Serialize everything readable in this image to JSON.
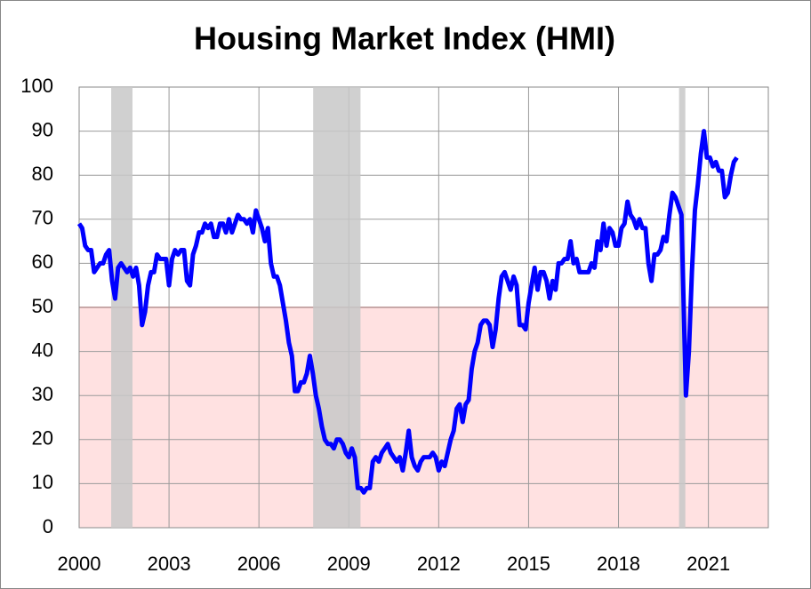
{
  "chart_data": {
    "type": "line",
    "title": "Housing Market Index (HMI)",
    "x": [
      2000.0,
      2000.1,
      2000.2,
      2000.3,
      2000.4,
      2000.5,
      2000.6,
      2000.7,
      2000.8,
      2000.9,
      2001.0,
      2001.1,
      2001.2,
      2001.3,
      2001.4,
      2001.5,
      2001.6,
      2001.7,
      2001.8,
      2001.9,
      2002.0,
      2002.1,
      2002.2,
      2002.3,
      2002.4,
      2002.5,
      2002.6,
      2002.7,
      2002.8,
      2002.9,
      2003.0,
      2003.1,
      2003.2,
      2003.3,
      2003.4,
      2003.5,
      2003.6,
      2003.7,
      2003.8,
      2003.9,
      2004.0,
      2004.1,
      2004.2,
      2004.3,
      2004.4,
      2004.5,
      2004.6,
      2004.7,
      2004.8,
      2004.9,
      2005.0,
      2005.1,
      2005.2,
      2005.3,
      2005.4,
      2005.5,
      2005.6,
      2005.7,
      2005.8,
      2005.9,
      2006.0,
      2006.1,
      2006.2,
      2006.3,
      2006.4,
      2006.5,
      2006.6,
      2006.7,
      2006.8,
      2006.9,
      2007.0,
      2007.1,
      2007.2,
      2007.3,
      2007.4,
      2007.5,
      2007.6,
      2007.7,
      2007.8,
      2007.9,
      2008.0,
      2008.1,
      2008.2,
      2008.3,
      2008.4,
      2008.5,
      2008.6,
      2008.7,
      2008.8,
      2008.9,
      2009.0,
      2009.1,
      2009.2,
      2009.3,
      2009.4,
      2009.5,
      2009.6,
      2009.7,
      2009.8,
      2009.9,
      2010.0,
      2010.1,
      2010.2,
      2010.3,
      2010.4,
      2010.5,
      2010.6,
      2010.7,
      2010.8,
      2010.9,
      2011.0,
      2011.1,
      2011.2,
      2011.3,
      2011.4,
      2011.5,
      2011.6,
      2011.7,
      2011.8,
      2011.9,
      2012.0,
      2012.1,
      2012.2,
      2012.3,
      2012.4,
      2012.5,
      2012.6,
      2012.7,
      2012.8,
      2012.9,
      2013.0,
      2013.1,
      2013.2,
      2013.3,
      2013.4,
      2013.5,
      2013.6,
      2013.7,
      2013.8,
      2013.9,
      2014.0,
      2014.1,
      2014.2,
      2014.3,
      2014.4,
      2014.5,
      2014.6,
      2014.7,
      2014.8,
      2014.9,
      2015.0,
      2015.1,
      2015.2,
      2015.3,
      2015.4,
      2015.5,
      2015.6,
      2015.7,
      2015.8,
      2015.9,
      2016.0,
      2016.1,
      2016.2,
      2016.3,
      2016.4,
      2016.5,
      2016.6,
      2016.7,
      2016.8,
      2016.9,
      2017.0,
      2017.1,
      2017.2,
      2017.3,
      2017.4,
      2017.5,
      2017.6,
      2017.7,
      2017.8,
      2017.9,
      2018.0,
      2018.1,
      2018.2,
      2018.3,
      2018.4,
      2018.5,
      2018.6,
      2018.7,
      2018.8,
      2018.9,
      2019.0,
      2019.1,
      2019.2,
      2019.3,
      2019.4,
      2019.5,
      2019.6,
      2019.7,
      2019.8,
      2019.9,
      2020.0,
      2020.1,
      2020.25,
      2020.35,
      2020.45,
      2020.55,
      2020.65,
      2020.75,
      2020.85,
      2020.95,
      2021.05,
      2021.15,
      2021.25,
      2021.35,
      2021.45,
      2021.55,
      2021.65,
      2021.75,
      2021.85,
      2021.95
    ],
    "values": [
      69,
      68,
      64,
      63,
      63,
      58,
      59,
      60,
      60,
      62,
      63,
      56,
      52,
      59,
      60,
      59,
      58,
      59,
      57,
      59,
      55,
      46,
      49,
      55,
      58,
      58,
      62,
      61,
      61,
      61,
      55,
      61,
      63,
      62,
      63,
      63,
      56,
      55,
      62,
      64,
      67,
      67,
      69,
      68,
      69,
      66,
      66,
      69,
      69,
      67,
      70,
      67,
      69,
      71,
      70,
      70,
      69,
      70,
      67,
      72,
      70,
      68,
      65,
      68,
      60,
      57,
      57,
      55,
      51,
      47,
      42,
      39,
      31,
      31,
      33,
      33,
      35,
      39,
      35,
      30,
      27,
      23,
      20,
      19,
      19,
      18,
      20,
      20,
      19,
      17,
      16,
      18,
      16,
      9,
      9,
      8,
      9,
      9,
      15,
      16,
      15,
      17,
      18,
      19,
      17,
      16,
      15,
      16,
      13,
      17,
      22,
      16,
      14,
      13,
      15,
      16,
      16,
      16,
      17,
      16,
      13,
      15,
      14,
      17,
      20,
      22,
      27,
      28,
      24,
      28,
      29,
      36,
      40,
      42,
      46,
      47,
      47,
      46,
      41,
      45,
      52,
      57,
      58,
      56,
      54,
      57,
      55,
      46,
      46,
      45,
      51,
      55,
      59,
      54,
      58,
      58,
      56,
      52,
      56,
      54,
      60,
      60,
      61,
      61,
      65,
      60,
      61,
      58,
      58,
      58,
      58,
      60,
      59,
      65,
      63,
      69,
      64,
      68,
      67,
      64,
      64,
      68,
      69,
      74,
      71,
      70,
      68,
      70,
      68,
      68,
      60,
      56,
      62,
      62,
      63,
      66,
      65,
      71,
      76,
      75,
      73,
      71,
      30,
      40,
      58,
      72,
      78,
      85,
      90,
      84,
      84,
      82,
      83,
      81,
      81,
      75,
      76,
      80,
      83,
      84
    ],
    "color": "#0000ff",
    "xlim": [
      2000,
      2023
    ],
    "xticks": [
      2000,
      2003,
      2006,
      2009,
      2012,
      2015,
      2018,
      2021
    ],
    "ylim": [
      0,
      100
    ],
    "yticks": [
      0,
      10,
      20,
      30,
      40,
      50,
      60,
      70,
      80,
      90,
      100
    ],
    "grid": true,
    "threshold": 50,
    "threshold_color": "#ffe1e1",
    "shaded_periods": [
      [
        2001.07,
        2001.78
      ],
      [
        2007.81,
        2009.39
      ],
      [
        2020.02,
        2020.23
      ]
    ],
    "shade_color": "#c8c8c8"
  }
}
